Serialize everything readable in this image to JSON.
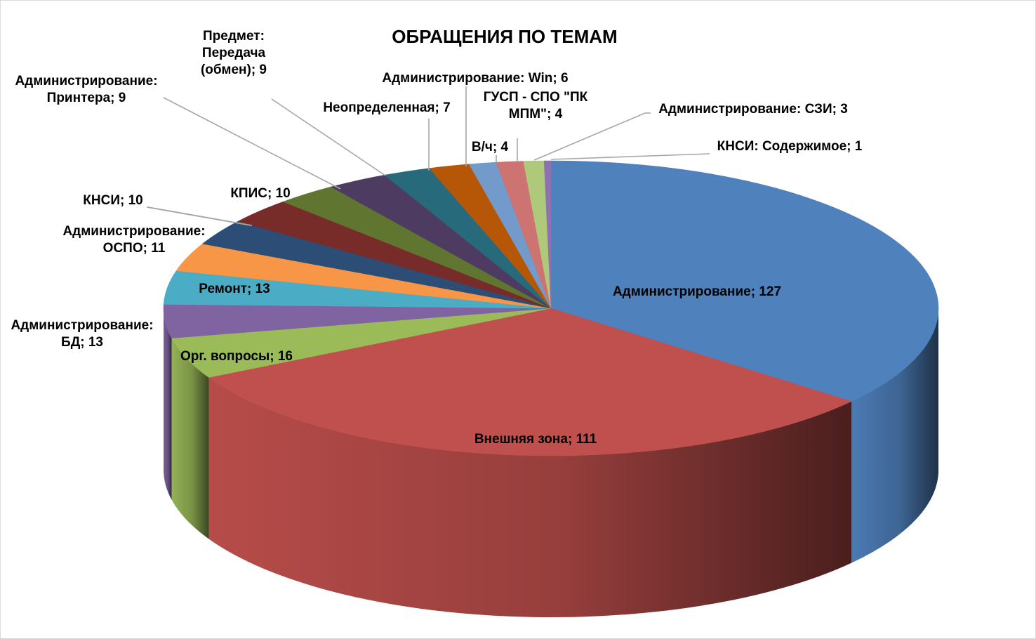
{
  "chart_data": {
    "type": "pie",
    "title": "ОБРАЩЕНИЯ ПО ТЕМАМ",
    "slices": [
      {
        "label": "Администрирование; 127",
        "value": 127,
        "color": "#4f81bd"
      },
      {
        "label": "Внешняя зона; 111",
        "value": 111,
        "color": "#c0504d"
      },
      {
        "label": "Орг. вопросы; 16",
        "value": 16,
        "color": "#9bbb59"
      },
      {
        "label": "Администрирование: БД; 13",
        "value": 13,
        "color": "#8064a2"
      },
      {
        "label": "Ремонт; 13",
        "value": 13,
        "color": "#4bacc6"
      },
      {
        "label": "Администрирование: ОСПО; 11",
        "value": 11,
        "color": "#f79646"
      },
      {
        "label": "КНСИ; 10",
        "value": 10,
        "color": "#2c4d75"
      },
      {
        "label": "КПИС; 10",
        "value": 10,
        "color": "#772c2a"
      },
      {
        "label": "Администрирование: Принтера; 9",
        "value": 9,
        "color": "#5f7530"
      },
      {
        "label": "Предмет: Передача (обмен); 9",
        "value": 9,
        "color": "#4d3b62"
      },
      {
        "label": "Неопределенная; 7",
        "value": 7,
        "color": "#276a7c"
      },
      {
        "label": "Администрирование: Win; 6",
        "value": 6,
        "color": "#b65708"
      },
      {
        "label": "В/ч; 4",
        "value": 4,
        "color": "#729aca"
      },
      {
        "label": "ГУСП - СПО \"ПК МПМ\"; 4",
        "value": 4,
        "color": "#cd7371"
      },
      {
        "label": "Администрирование: СЗИ; 3",
        "value": 3,
        "color": "#afc97a"
      },
      {
        "label": "КНСИ: Содержимое; 1",
        "value": 1,
        "color": "#8c73b0"
      }
    ],
    "legend": "none",
    "style": "3d-pie"
  }
}
